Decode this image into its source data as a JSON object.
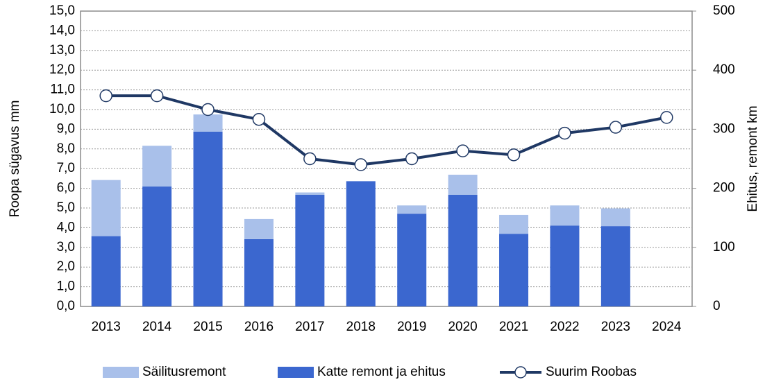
{
  "chart_data": {
    "type": "bar_line",
    "y_label": "Roopa sügavus mm",
    "y2_label": "Ehitus, remont km",
    "categories": [
      "2013",
      "2014",
      "2015",
      "2016",
      "2017",
      "2018",
      "2019",
      "2020",
      "2021",
      "2022",
      "2023",
      "2024"
    ],
    "series": [
      {
        "name": "Säilitusremont",
        "type": "bar",
        "axis": "y2",
        "color": "#a9c0ea",
        "values": [
          95,
          69,
          29,
          34,
          4,
          0,
          14,
          34,
          32,
          34,
          30,
          null
        ]
      },
      {
        "name": "Katte remont ja ehitus",
        "type": "bar",
        "axis": "y2",
        "color": "#3b67cf",
        "values": [
          119,
          203,
          296,
          114,
          189,
          212,
          157,
          189,
          123,
          137,
          136,
          null
        ]
      },
      {
        "name": "Suurim Roobas",
        "type": "line",
        "axis": "y",
        "color": "#1f3864",
        "values": [
          10.7,
          10.7,
          10.0,
          9.5,
          7.5,
          7.2,
          7.5,
          7.9,
          7.7,
          8.8,
          9.1,
          9.6
        ]
      }
    ],
    "ylim": [
      0,
      15
    ],
    "yticks": [
      {
        "value": 0,
        "label": "0,0"
      },
      {
        "value": 1,
        "label": "1,0"
      },
      {
        "value": 2,
        "label": "2,0"
      },
      {
        "value": 3,
        "label": "3,0"
      },
      {
        "value": 4,
        "label": "4,0"
      },
      {
        "value": 5,
        "label": "5,0"
      },
      {
        "value": 6,
        "label": "6,0"
      },
      {
        "value": 7,
        "label": "7,0"
      },
      {
        "value": 8,
        "label": "8,0"
      },
      {
        "value": 9,
        "label": "9,0"
      },
      {
        "value": 10,
        "label": "10,0"
      },
      {
        "value": 11,
        "label": "11,0"
      },
      {
        "value": 12,
        "label": "12,0"
      },
      {
        "value": 13,
        "label": "13,0"
      },
      {
        "value": 14,
        "label": "14,0"
      },
      {
        "value": 15,
        "label": "15,0"
      }
    ],
    "y2lim": [
      0,
      500
    ],
    "y2ticks": [
      0,
      100,
      200,
      300,
      400,
      500
    ],
    "grid": true,
    "legend": "bottom"
  }
}
